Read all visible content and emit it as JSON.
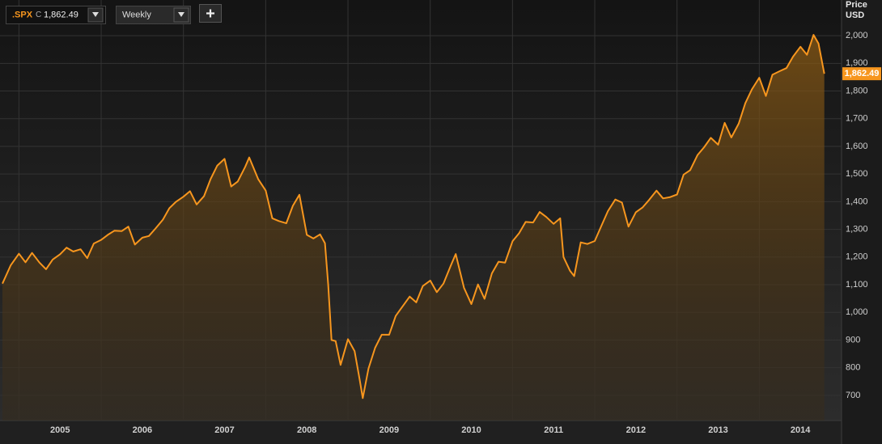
{
  "chart_data": {
    "type": "line",
    "symbol": ".SPX",
    "price_type": "C",
    "interval": "Weekly",
    "y_axis_label": "Price",
    "y_axis_unit": "USD",
    "x": [
      2004.8,
      2004.9,
      2005.0,
      2005.08,
      2005.16,
      2005.25,
      2005.33,
      2005.41,
      2005.5,
      2005.58,
      2005.66,
      2005.75,
      2005.83,
      2005.91,
      2006.0,
      2006.08,
      2006.16,
      2006.25,
      2006.33,
      2006.41,
      2006.5,
      2006.58,
      2006.66,
      2006.75,
      2006.83,
      2006.91,
      2007.0,
      2007.08,
      2007.16,
      2007.25,
      2007.33,
      2007.41,
      2007.5,
      2007.58,
      2007.66,
      2007.75,
      2007.8,
      2007.91,
      2008.0,
      2008.08,
      2008.16,
      2008.25,
      2008.33,
      2008.41,
      2008.5,
      2008.58,
      2008.66,
      2008.72,
      2008.76,
      2008.8,
      2008.85,
      2008.91,
      2009.0,
      2009.08,
      2009.14,
      2009.18,
      2009.25,
      2009.33,
      2009.41,
      2009.5,
      2009.58,
      2009.66,
      2009.75,
      2009.83,
      2009.91,
      2010.0,
      2010.08,
      2010.16,
      2010.25,
      2010.31,
      2010.41,
      2010.5,
      2010.58,
      2010.66,
      2010.75,
      2010.83,
      2010.91,
      2011.0,
      2011.08,
      2011.16,
      2011.25,
      2011.33,
      2011.41,
      2011.5,
      2011.58,
      2011.62,
      2011.7,
      2011.75,
      2011.83,
      2011.91,
      2012.0,
      2012.08,
      2012.16,
      2012.25,
      2012.33,
      2012.41,
      2012.5,
      2012.58,
      2012.66,
      2012.75,
      2012.83,
      2012.91,
      2013.0,
      2013.08,
      2013.16,
      2013.25,
      2013.33,
      2013.41,
      2013.5,
      2013.58,
      2013.66,
      2013.75,
      2013.83,
      2013.91,
      2014.0,
      2014.08,
      2014.16,
      2014.25,
      2014.33,
      2014.41,
      2014.5,
      2014.58,
      2014.66,
      2014.72,
      2014.79
    ],
    "series": [
      {
        "name": ".SPX",
        "color": "#f7961e",
        "values": [
          1104,
          1170,
          1212,
          1181,
          1215,
          1180,
          1156,
          1191,
          1210,
          1234,
          1220,
          1228,
          1196,
          1249,
          1262,
          1280,
          1295,
          1294,
          1310,
          1245,
          1270,
          1276,
          1303,
          1335,
          1377,
          1400,
          1418,
          1438,
          1390,
          1420,
          1482,
          1530,
          1555,
          1455,
          1473,
          1526,
          1560,
          1481,
          1440,
          1340,
          1330,
          1322,
          1385,
          1425,
          1280,
          1267,
          1282,
          1250,
          1100,
          900,
          896,
          810,
          903,
          860,
          760,
          690,
          797,
          872,
          919,
          919,
          987,
          1020,
          1057,
          1036,
          1095,
          1115,
          1073,
          1104,
          1169,
          1211,
          1089,
          1030,
          1101,
          1049,
          1141,
          1183,
          1180,
          1257,
          1286,
          1327,
          1325,
          1363,
          1345,
          1320,
          1340,
          1200,
          1150,
          1131,
          1253,
          1247,
          1258,
          1312,
          1366,
          1408,
          1397,
          1310,
          1362,
          1379,
          1406,
          1440,
          1412,
          1416,
          1426,
          1498,
          1514,
          1569,
          1597,
          1631,
          1606,
          1685,
          1632,
          1682,
          1756,
          1806,
          1848,
          1782,
          1859,
          1872,
          1883,
          1924,
          1960,
          1931,
          2003,
          1972,
          1862.49
        ],
        "value_labels": [
          null,
          null,
          null,
          null,
          null,
          null,
          null,
          null,
          null,
          null,
          null,
          null,
          null,
          null,
          null,
          null,
          null,
          null,
          null,
          null,
          null,
          null,
          null,
          null,
          null,
          null,
          null,
          null,
          null,
          null,
          null,
          null,
          null,
          null,
          null,
          null,
          null,
          null,
          null,
          null,
          null,
          null,
          null,
          null,
          null,
          null,
          null,
          null,
          null,
          null,
          null,
          null,
          null,
          null,
          null,
          null,
          null,
          null,
          null,
          null,
          null,
          null,
          null,
          null,
          null,
          null,
          null,
          null,
          null,
          null,
          null,
          null,
          null,
          null,
          null,
          null,
          null,
          null,
          null,
          null,
          null,
          null,
          null,
          null,
          null,
          null,
          null,
          null,
          null,
          null,
          null,
          null,
          null,
          null,
          null,
          null,
          null,
          null,
          null,
          null,
          null,
          null,
          null,
          null,
          null,
          null,
          null,
          null,
          null,
          null,
          null,
          null,
          null,
          null,
          null,
          null,
          null,
          null,
          null,
          null,
          null,
          null,
          null,
          null,
          "1,862.49"
        ]
      }
    ],
    "xlim": [
      2004.77,
      2015.0
    ],
    "xticks": [
      2005,
      2006,
      2007,
      2008,
      2009,
      2010,
      2011,
      2012,
      2013,
      2014
    ],
    "ylim": [
      609,
      2129
    ],
    "yticks": [
      700,
      800,
      900,
      {
        "value": 1000,
        "label": "1,000"
      },
      {
        "value": 1100,
        "label": "1,100"
      },
      {
        "value": 1200,
        "label": "1,200"
      },
      {
        "value": 1300,
        "label": "1,300"
      },
      {
        "value": 1400,
        "label": "1,400"
      },
      {
        "value": 1500,
        "label": "1,500"
      },
      {
        "value": 1600,
        "label": "1,600"
      },
      {
        "value": 1700,
        "label": "1,700"
      },
      {
        "value": 1800,
        "label": "1,800"
      },
      {
        "value": 1900,
        "label": "1,900"
      },
      {
        "value": 2000,
        "label": "2,000"
      }
    ],
    "grid": true
  }
}
